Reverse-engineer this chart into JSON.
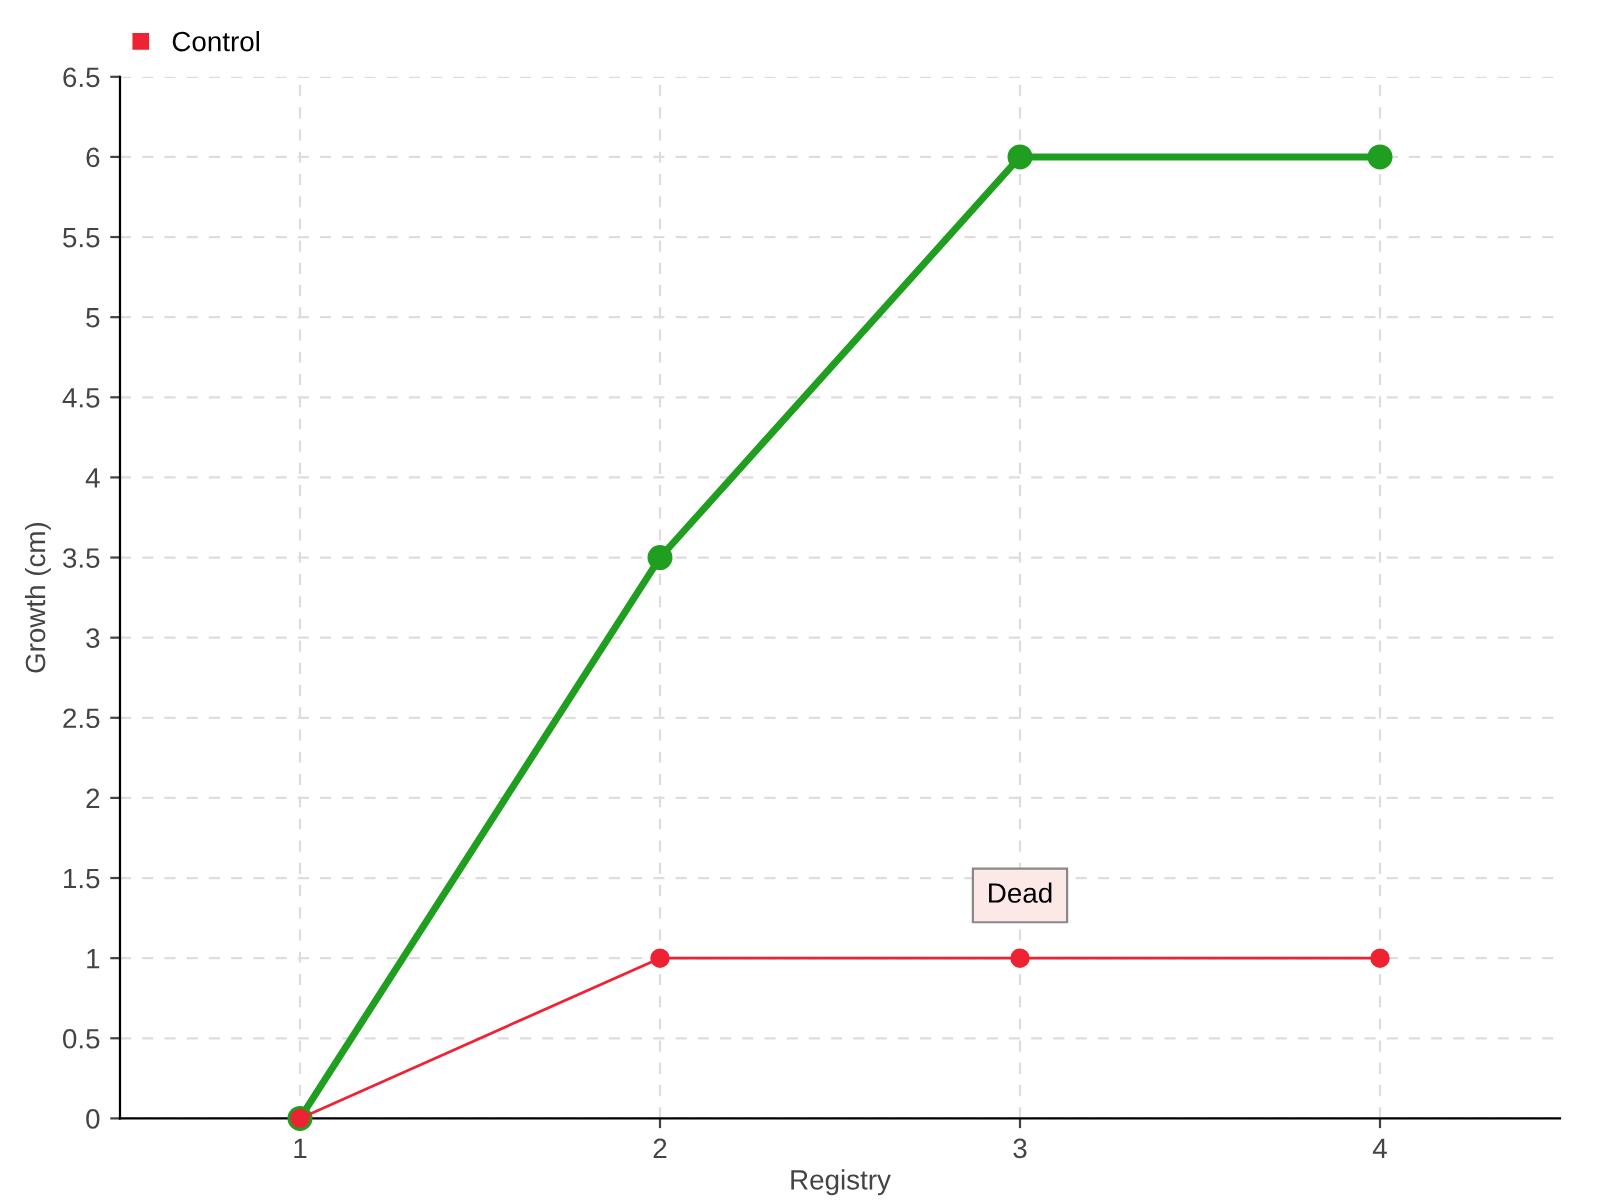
{
  "chart_data": {
    "type": "line",
    "xlabel": "Registry",
    "ylabel": "Growth (cm)",
    "categories": [
      "1",
      "2",
      "3",
      "4"
    ],
    "series": [
      {
        "color": "#1f9e1f",
        "values": [
          0,
          3.5,
          6,
          6
        ]
      },
      {
        "name": "Control",
        "color": "#ee2233",
        "values": [
          0,
          1,
          1,
          1
        ]
      }
    ],
    "ylim": [
      0,
      6.5
    ],
    "yticks": [
      0,
      {
        "value": 0.5,
        "label": "0.5"
      },
      1,
      {
        "value": 1.5,
        "label": "1.5"
      },
      2,
      {
        "value": 2.5,
        "label": "2.5"
      },
      3,
      {
        "value": 3.5,
        "label": "3.5"
      },
      4,
      {
        "value": 4.5,
        "label": "4.5"
      },
      5,
      {
        "value": 5.5,
        "label": "5.5"
      },
      6,
      {
        "value": 6.5,
        "label": "6.5"
      }
    ],
    "annotations": [
      {
        "text": "Dead",
        "x": "3",
        "y": 1
      }
    ],
    "grid": true,
    "legend": "top left",
    "marker": "circle",
    "line_style": "solid"
  }
}
